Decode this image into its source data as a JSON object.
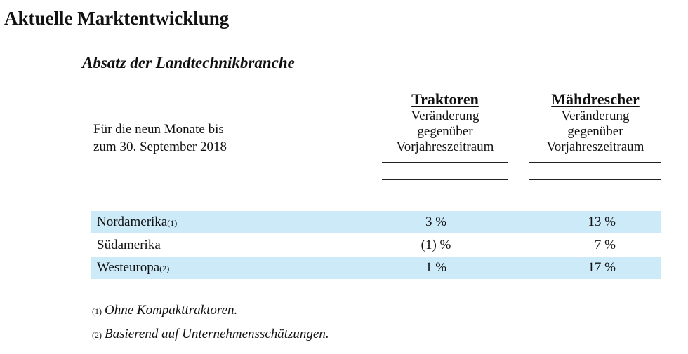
{
  "title": "Aktuelle Marktentwicklung",
  "subtitle": "Absatz der Landtechnikbranche",
  "period_label": "Für die neun Monate bis\nzum 30. September 2018",
  "columns": [
    {
      "name": "Traktoren",
      "desc": "Veränderung\ngegenüber\nVorjahreszeitraum"
    },
    {
      "name": "Mähdrescher",
      "desc": "Veränderung\ngegenüber\nVorjahreszeitraum"
    }
  ],
  "rows": [
    {
      "region": "Nordamerika",
      "note": "(1)",
      "traktoren": "3 %",
      "maehdrescher": "13 %"
    },
    {
      "region": "Südamerika",
      "note": "",
      "traktoren": "(1) %",
      "maehdrescher": "7 %"
    },
    {
      "region": "Westeuropa",
      "note": "(2)",
      "traktoren": "1 %",
      "maehdrescher": "17 %"
    }
  ],
  "footnotes": [
    {
      "mark": "(1)",
      "text": "Ohne Kompakttraktoren."
    },
    {
      "mark": "(2)",
      "text": "Basierend auf Unternehmensschätzungen."
    }
  ],
  "colors": {
    "row_shade": "#cdeaf8"
  }
}
